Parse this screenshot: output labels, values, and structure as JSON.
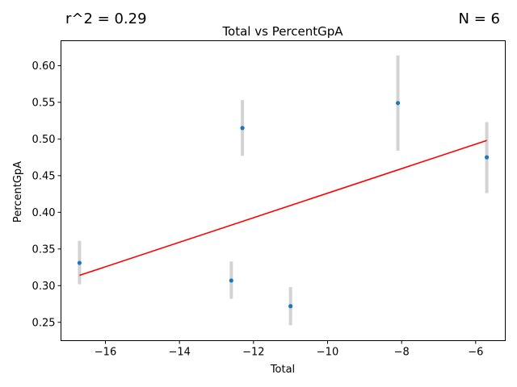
{
  "chart_data": {
    "type": "scatter",
    "title": "Total vs PercentGpA",
    "xlabel": "Total",
    "ylabel": "PercentGpA",
    "r2_text": "r^2 = 0.29",
    "n_text": "N = 6",
    "xlim": [
      -17.2,
      -5.2
    ],
    "ylim": [
      0.225,
      0.634
    ],
    "xticks": [
      -16,
      -14,
      -12,
      -10,
      -8,
      -6
    ],
    "xtick_labels": [
      "−16",
      "−14",
      "−12",
      "−10",
      "−8",
      "−6"
    ],
    "yticks": [
      0.25,
      0.3,
      0.35,
      0.4,
      0.45,
      0.5,
      0.55,
      0.6
    ],
    "ytick_labels": [
      "0.25",
      "0.30",
      "0.35",
      "0.40",
      "0.45",
      "0.50",
      "0.55",
      "0.60"
    ],
    "grid": false,
    "points": [
      {
        "x": -16.7,
        "y": 0.331,
        "err_low": 0.302,
        "err_high": 0.361
      },
      {
        "x": -12.6,
        "y": 0.307,
        "err_low": 0.282,
        "err_high": 0.333
      },
      {
        "x": -12.3,
        "y": 0.515,
        "err_low": 0.477,
        "err_high": 0.553
      },
      {
        "x": -11.0,
        "y": 0.272,
        "err_low": 0.246,
        "err_high": 0.298
      },
      {
        "x": -8.1,
        "y": 0.549,
        "err_low": 0.484,
        "err_high": 0.614
      },
      {
        "x": -5.7,
        "y": 0.475,
        "err_low": 0.426,
        "err_high": 0.523
      }
    ],
    "fit_line": {
      "x": [
        -16.7,
        -5.7
      ],
      "y": [
        0.314,
        0.498
      ]
    },
    "colors": {
      "points": "#1f77b4",
      "fit": "#ff0000",
      "errorbars": "#d3d3d3"
    }
  }
}
